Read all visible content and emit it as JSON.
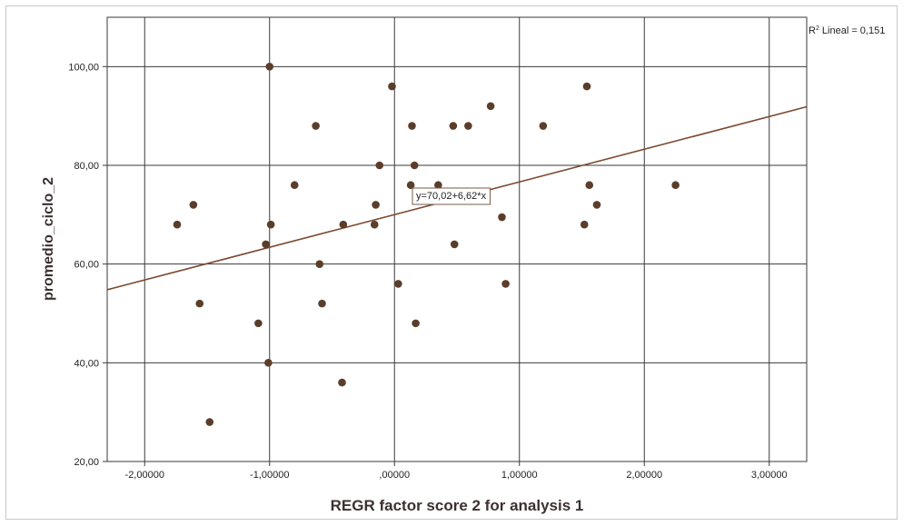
{
  "chart_data": {
    "type": "scatter",
    "xlabel": "REGR factor score   2 for analysis 1",
    "ylabel": "promedio_ciclo_2",
    "xlim": [
      -2.3,
      3.3
    ],
    "ylim": [
      20,
      110
    ],
    "x_ticks": [
      {
        "value": -2,
        "label": "-2,00000"
      },
      {
        "value": -1,
        "label": "-1,00000"
      },
      {
        "value": 0,
        "label": ",00000"
      },
      {
        "value": 1,
        "label": "1,00000"
      },
      {
        "value": 2,
        "label": "2,00000"
      },
      {
        "value": 3,
        "label": "3,00000"
      }
    ],
    "y_ticks": [
      {
        "value": 20,
        "label": "20,00"
      },
      {
        "value": 40,
        "label": "40,00"
      },
      {
        "value": 60,
        "label": "60,00"
      },
      {
        "value": 80,
        "label": "80,00"
      },
      {
        "value": 100,
        "label": "100,00"
      }
    ],
    "grid": true,
    "point_color": "#5a3e2b",
    "line_color": "#7a4a30",
    "points": [
      {
        "x": -1.74,
        "y": 68
      },
      {
        "x": -1.61,
        "y": 72
      },
      {
        "x": -1.56,
        "y": 52
      },
      {
        "x": -1.48,
        "y": 28
      },
      {
        "x": -1.09,
        "y": 48
      },
      {
        "x": -1.03,
        "y": 64
      },
      {
        "x": -1.01,
        "y": 40
      },
      {
        "x": -1.0,
        "y": 100
      },
      {
        "x": -0.99,
        "y": 68
      },
      {
        "x": -0.8,
        "y": 76
      },
      {
        "x": -0.63,
        "y": 88
      },
      {
        "x": -0.6,
        "y": 60
      },
      {
        "x": -0.58,
        "y": 52
      },
      {
        "x": -0.42,
        "y": 36
      },
      {
        "x": -0.41,
        "y": 68
      },
      {
        "x": -0.16,
        "y": 68
      },
      {
        "x": -0.15,
        "y": 72
      },
      {
        "x": -0.12,
        "y": 80
      },
      {
        "x": -0.02,
        "y": 96
      },
      {
        "x": 0.03,
        "y": 56
      },
      {
        "x": 0.13,
        "y": 76
      },
      {
        "x": 0.14,
        "y": 88
      },
      {
        "x": 0.16,
        "y": 80
      },
      {
        "x": 0.17,
        "y": 48
      },
      {
        "x": 0.35,
        "y": 76
      },
      {
        "x": 0.47,
        "y": 88
      },
      {
        "x": 0.48,
        "y": 64
      },
      {
        "x": 0.59,
        "y": 88
      },
      {
        "x": 0.77,
        "y": 92
      },
      {
        "x": 0.86,
        "y": 69.5
      },
      {
        "x": 0.89,
        "y": 56
      },
      {
        "x": 1.19,
        "y": 88
      },
      {
        "x": 1.52,
        "y": 68
      },
      {
        "x": 1.54,
        "y": 96
      },
      {
        "x": 1.56,
        "y": 76
      },
      {
        "x": 1.62,
        "y": 72
      },
      {
        "x": 2.25,
        "y": 76
      }
    ],
    "fit_line": {
      "intercept": 70.02,
      "slope": 6.62,
      "equation_label": "y=70,02+6,62*x",
      "r2_prefix": "R",
      "r2_sup": "2",
      "r2_text": " Lineal = 0,151"
    }
  }
}
